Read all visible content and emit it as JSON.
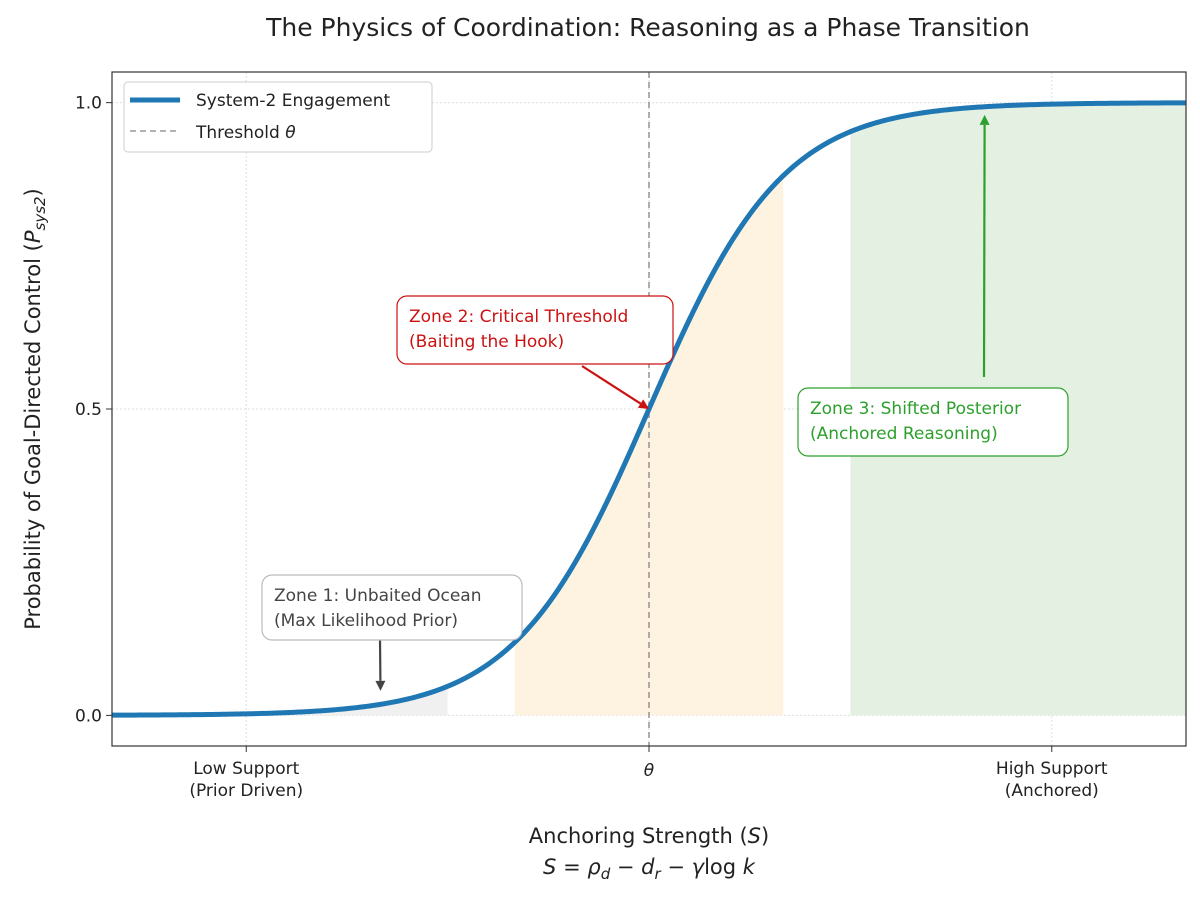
{
  "chart_data": {
    "type": "line",
    "title": "The Physics of Coordination: Reasoning as a Phase Transition",
    "xlabel": "Anchoring Strength (S)",
    "xlabel_main": "Anchoring Strength (",
    "xlabel_symbol": "S",
    "xlabel_close": ")",
    "xlabel_formula": [
      "S",
      " = ",
      "ρ",
      "d",
      " − ",
      "d",
      "r",
      " − ",
      "γ",
      "log ",
      "k"
    ],
    "ylabel_main": "Probability of Goal-Directed Control (",
    "ylabel_symbol": "P",
    "ylabel_sub": "sys2",
    "ylabel_close": ")",
    "xlim": [
      -8,
      8
    ],
    "ylim": [
      -0.05,
      1.05
    ],
    "grid": true,
    "x_ticks": [
      {
        "value": -6,
        "label": [
          "Low Support",
          "(Prior Driven)"
        ]
      },
      {
        "value": 0,
        "label": [
          "θ"
        ]
      },
      {
        "value": 6,
        "label": [
          "High Support",
          "(Anchored)"
        ]
      }
    ],
    "y_ticks": [
      {
        "value": 0,
        "label": "0.0"
      },
      {
        "value": 0.5,
        "label": "0.5"
      },
      {
        "value": 1,
        "label": "1.0"
      }
    ],
    "series": [
      {
        "name": "System-2 Engagement",
        "function": "1/(1+exp(-S))",
        "color": "#1f77b4",
        "x": [
          -8,
          -7,
          -6,
          -5,
          -4,
          -3,
          -2,
          -1,
          0,
          1,
          2,
          3,
          4,
          5,
          6,
          7,
          8
        ],
        "y": [
          0.0003,
          0.0009,
          0.0025,
          0.0067,
          0.018,
          0.047,
          0.119,
          0.269,
          0.5,
          0.731,
          0.881,
          0.953,
          0.982,
          0.993,
          0.9975,
          0.9991,
          0.9997
        ]
      }
    ],
    "threshold": {
      "name": "Threshold θ",
      "legend_text": "Threshold ",
      "legend_symbol": "θ",
      "x": 0,
      "color": "#999999"
    },
    "legend_placement": "top-left",
    "zones": [
      {
        "x_range": [
          -8,
          -3
        ],
        "color": "#f0f0f0",
        "label": [
          "Zone 1: Unbaited Ocean",
          "(Max Likelihood Prior)"
        ],
        "text_color": "#444444",
        "arrow_target": [
          -4,
          0.04
        ]
      },
      {
        "x_range": [
          -2,
          2
        ],
        "color": "#fdf3e0",
        "label": [
          "Zone 2: Critical Threshold",
          "(Baiting the Hook)"
        ],
        "text_color": "#cc1111",
        "arrow_target": [
          0,
          0.5
        ]
      },
      {
        "x_range": [
          3,
          8
        ],
        "color": "#e4f1e2",
        "label": [
          "Zone 3: Shifted Posterior",
          "(Anchored Reasoning)"
        ],
        "text_color": "#2ca02c",
        "arrow_target": [
          5,
          0.98
        ]
      }
    ]
  }
}
